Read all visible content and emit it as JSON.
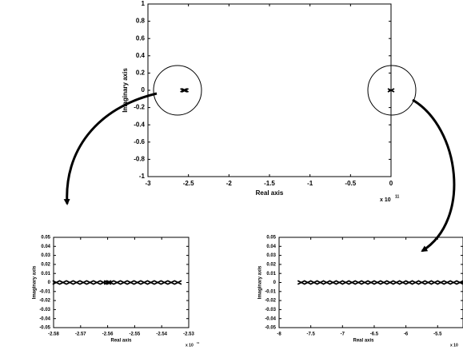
{
  "chart_data": [
    {
      "type": "scatter",
      "x_label": "Real axis",
      "y_label": "Imaginary axis",
      "x_scale_label": "x 10",
      "x_scale_exponent": "11",
      "xlim": [
        -3,
        0
      ],
      "ylim": [
        -1,
        1
      ],
      "xticks": [
        -3,
        -2.5,
        -2,
        -1.5,
        -1,
        -0.5,
        0
      ],
      "yticks": [
        -1,
        -0.8,
        -0.6,
        -0.4,
        -0.2,
        0,
        0.2,
        0.4,
        0.6,
        0.8,
        1
      ],
      "series": [
        {
          "color": "#000000",
          "x": [
            -2.56,
            -2.55,
            -2.54,
            0
          ],
          "values": [
            0,
            0,
            0,
            0
          ]
        }
      ]
    },
    {
      "type": "scatter",
      "x_label": "Real axis",
      "y_label": "Imaginary axis",
      "x_scale_label": "x 10",
      "x_scale_exponent": "11",
      "xlim": [
        -2.58,
        -2.53
      ],
      "ylim": [
        -0.05,
        0.05
      ],
      "xticks": [
        -2.58,
        -2.57,
        -2.56,
        -2.55,
        -2.54,
        -2.53
      ],
      "yticks": [
        -0.05,
        -0.04,
        -0.03,
        -0.02,
        -0.01,
        0,
        0.01,
        0.02,
        0.03,
        0.04,
        0.05
      ],
      "series": [
        {
          "color": "#000000",
          "x": [
            -2.579,
            -2.5765,
            -2.574,
            -2.5715,
            -2.569,
            -2.5665,
            -2.564,
            -2.5615,
            -2.56,
            -2.559,
            -2.5565,
            -2.554,
            -2.5515,
            -2.549,
            -2.5465,
            -2.544,
            -2.5415,
            -2.539,
            -2.5365,
            -2.534
          ],
          "values": [
            0,
            0,
            0,
            0,
            0,
            0,
            0,
            0,
            0,
            0,
            0,
            0,
            0,
            0,
            0,
            0,
            0,
            0,
            0,
            0
          ]
        }
      ]
    },
    {
      "type": "scatter",
      "x_label": "Real axis",
      "y_label": "Imaginary axis",
      "x_scale_label": "x 10",
      "xlim": [
        -8,
        -5.1
      ],
      "ylim": [
        -0.05,
        0.05
      ],
      "xticks": [
        -8,
        -7.5,
        -7,
        -6.5,
        -6,
        -5.5
      ],
      "yticks": [
        -0.05,
        -0.04,
        -0.03,
        -0.02,
        -0.01,
        0,
        0.01,
        0.02,
        0.03,
        0.04,
        0.05
      ],
      "series": [
        {
          "color": "#000000",
          "x": [
            -7.65,
            -7.55,
            -7.45,
            -7.35,
            -7.25,
            -7.15,
            -7.05,
            -6.95,
            -6.85,
            -6.75,
            -6.65,
            -6.55,
            -6.45,
            -6.35,
            -6.25,
            -6.15,
            -6.05,
            -5.95,
            -5.85,
            -5.75,
            -5.65,
            -5.55,
            -5.45,
            -5.35,
            -5.25,
            -5.15
          ],
          "values": [
            0,
            0,
            0,
            0,
            0,
            0,
            0,
            0,
            0,
            0,
            0,
            0,
            0,
            0,
            0,
            0,
            0,
            0,
            0,
            0,
            0,
            0,
            0,
            0,
            0,
            0
          ]
        }
      ]
    }
  ]
}
